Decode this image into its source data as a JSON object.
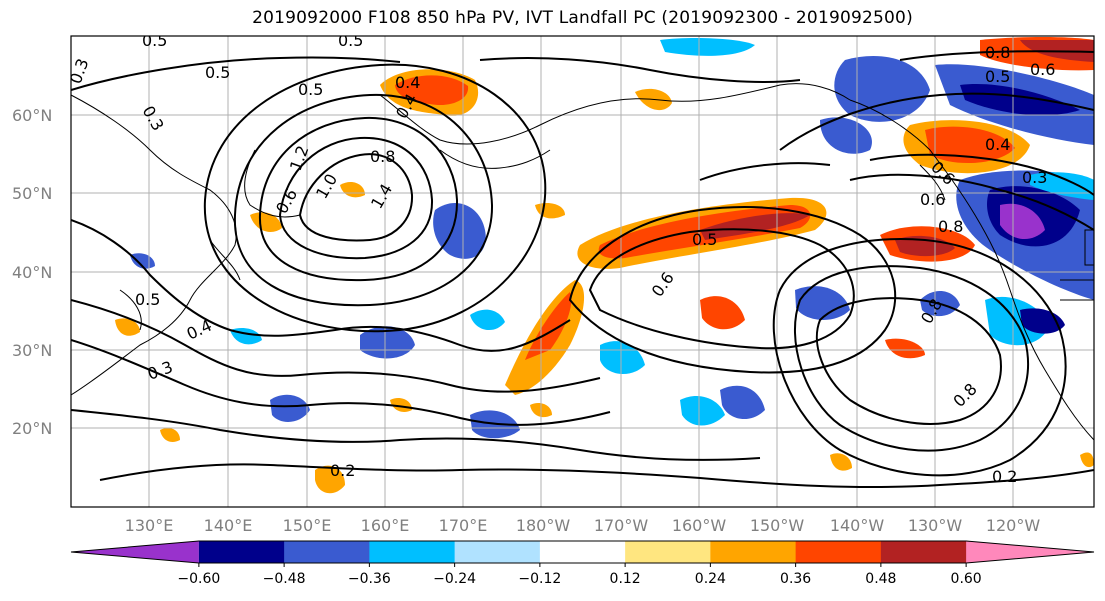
{
  "title": "2019092000 F108 850 hPa PV, IVT Landfall PC (2019092300 - 2019092500)",
  "lat_labels": [
    "60°N",
    "50°N",
    "40°N",
    "30°N",
    "20°N"
  ],
  "lon_labels": [
    "130°E",
    "140°E",
    "150°E",
    "160°E",
    "170°E",
    "180°W",
    "170°W",
    "160°W",
    "150°W",
    "140°W",
    "130°W",
    "120°W"
  ],
  "colorbar": {
    "colors": [
      "#9932cc",
      "#00008b",
      "#3a5bd0",
      "#00bfff",
      "#b0e2ff",
      "#ffffff",
      "#ffe680",
      "#ffa500",
      "#ff4500",
      "#b22222",
      "#ff88bb"
    ],
    "tick_labels": [
      "−0.60",
      "−0.48",
      "−0.36",
      "−0.24",
      "−0.12",
      "0.12",
      "0.24",
      "0.36",
      "0.48",
      "0.60"
    ]
  },
  "contour_labels": [
    "0.5",
    "0.5",
    "0.3",
    "0.5",
    "0.5",
    "0.3",
    "0.4",
    "0.8",
    "1.2",
    "1.0",
    "1.4",
    "0.6",
    "0.5",
    "0.4",
    "0.3",
    "0.6",
    "0.5",
    "0.8",
    "0.8",
    "0.6",
    "0.4",
    "0.3",
    "0.6",
    "0.8",
    "0.8",
    "0.2",
    "0.2",
    "0.6",
    "0.5",
    "0.4"
  ]
}
